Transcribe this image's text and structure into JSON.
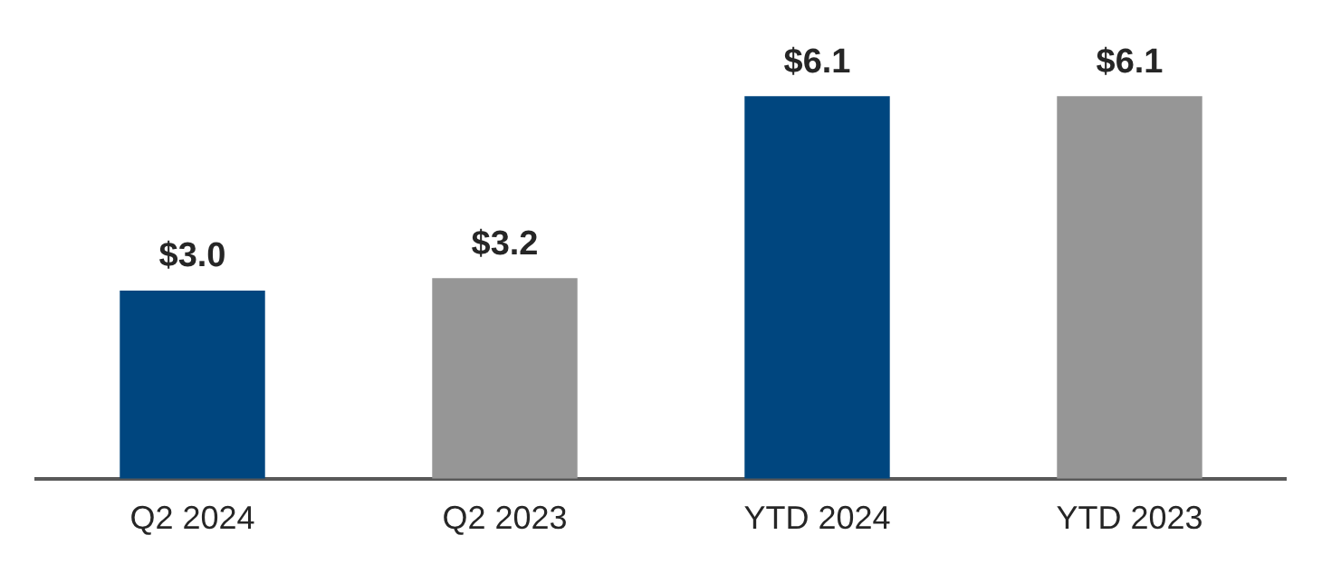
{
  "chart_data": {
    "type": "bar",
    "categories": [
      "Q2 2024",
      "Q2 2023",
      "YTD 2024",
      "YTD 2023"
    ],
    "values": [
      3.0,
      3.2,
      6.1,
      6.1
    ],
    "colors": [
      "#00467f",
      "#969696",
      "#00467f",
      "#969696"
    ],
    "value_labels": [
      "$3.0",
      "$3.2",
      "$6.1",
      "$6.1"
    ],
    "grid": false,
    "legend": false,
    "tick_labels": "x"
  }
}
